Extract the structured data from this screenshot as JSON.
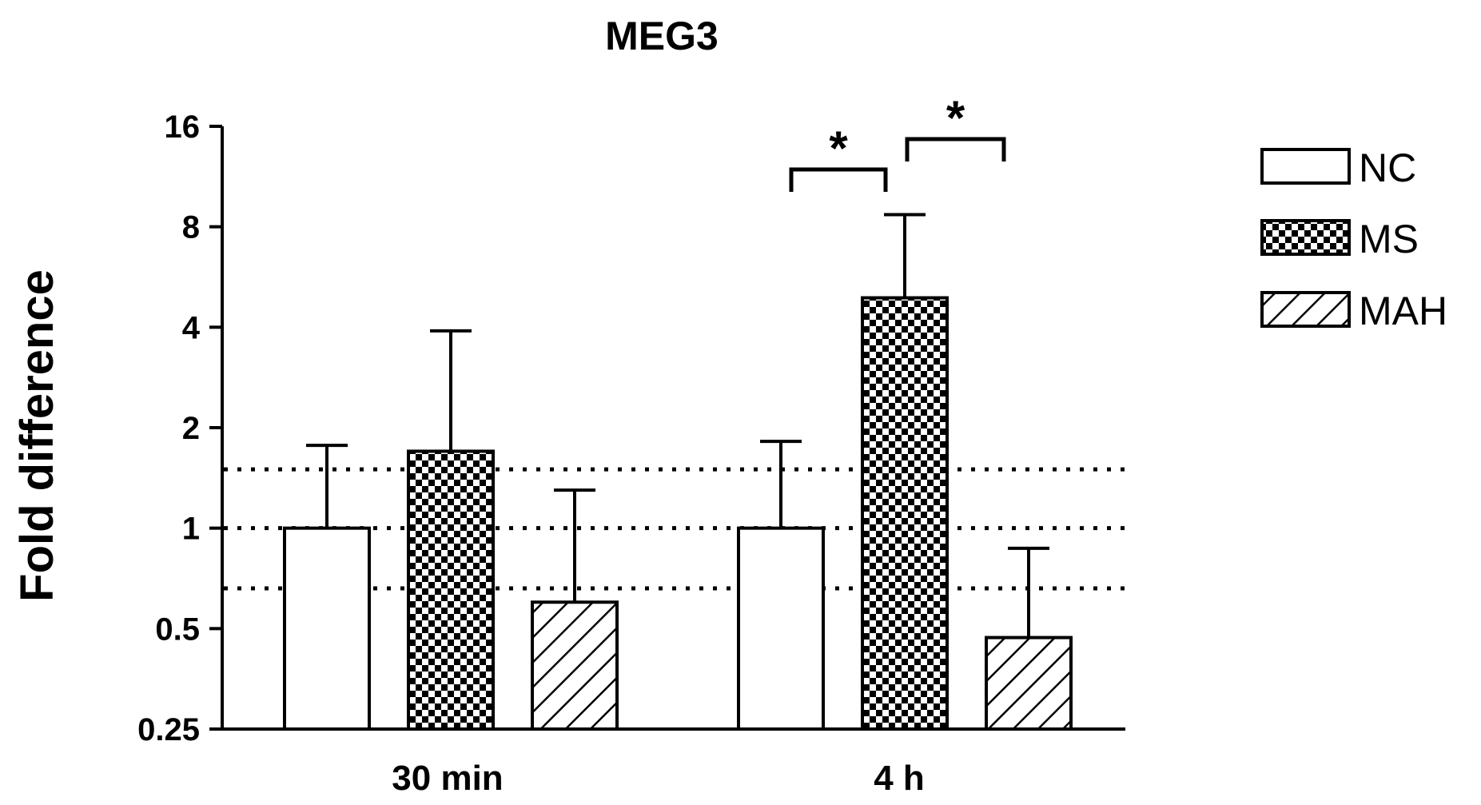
{
  "chart_data": {
    "type": "bar",
    "title": "MEG3",
    "ylabel": "Fold difference",
    "xlabel": "",
    "y_scale": "log2",
    "ylim": [
      0.25,
      16
    ],
    "y_ticks": [
      0.25,
      0.5,
      1,
      2,
      4,
      8,
      16
    ],
    "y_tick_labels": [
      "0.25",
      "0.5",
      "1",
      "2",
      "4",
      "8",
      "16"
    ],
    "categories": [
      "30 min",
      "4 h"
    ],
    "series": [
      {
        "name": "NC",
        "pattern": "white",
        "values": [
          1.0,
          1.0
        ],
        "error_upper": [
          1.77,
          1.82
        ]
      },
      {
        "name": "MS",
        "pattern": "checkerboard",
        "values": [
          1.7,
          4.9
        ],
        "error_upper": [
          3.9,
          8.7
        ]
      },
      {
        "name": "MAH",
        "pattern": "diagonal-hatch",
        "values": [
          0.6,
          0.47
        ],
        "error_upper": [
          1.3,
          0.87
        ]
      }
    ],
    "reference_lines": [
      0.66,
      1.0,
      1.5
    ],
    "significance": [
      {
        "category": "4 h",
        "between": [
          "NC",
          "MS"
        ],
        "label": "*"
      },
      {
        "category": "4 h",
        "between": [
          "MS",
          "MAH"
        ],
        "label": "*"
      }
    ],
    "legend_position": "right"
  }
}
